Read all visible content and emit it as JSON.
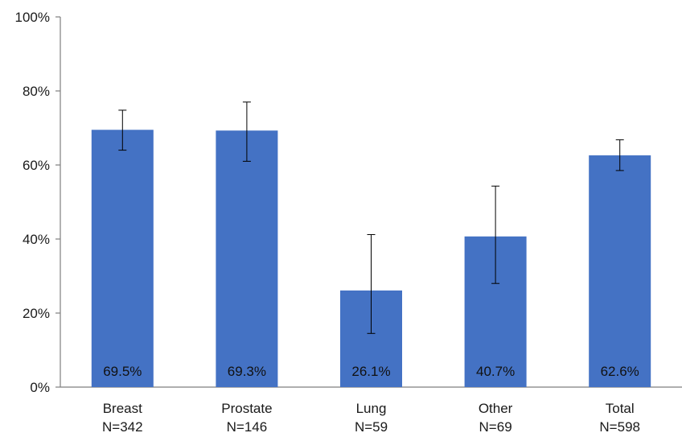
{
  "chart_data": {
    "type": "bar",
    "categories": [
      "Breast",
      "Prostate",
      "Lung",
      "Other",
      "Total"
    ],
    "category_sublabels": [
      "N=342",
      "N=146",
      "N=59",
      "N=69",
      "N=598"
    ],
    "values": [
      69.5,
      69.3,
      26.1,
      40.7,
      62.6
    ],
    "data_labels": [
      "69.5%",
      "69.3%",
      "26.1%",
      "40.7%",
      "62.6%"
    ],
    "error_low": [
      64.0,
      61.0,
      14.5,
      28.0,
      58.5
    ],
    "error_high": [
      74.8,
      77.0,
      41.2,
      54.3,
      66.8
    ],
    "ylim": [
      0,
      100
    ],
    "yticks": [
      0,
      20,
      40,
      60,
      80,
      100
    ],
    "ytick_labels": [
      "0%",
      "20%",
      "40%",
      "60%",
      "80%",
      "100%"
    ],
    "title": "",
    "xlabel": "",
    "ylabel": "",
    "grid": false,
    "bar_color": "#4472C4",
    "axis_color": "#7f7f7f"
  }
}
